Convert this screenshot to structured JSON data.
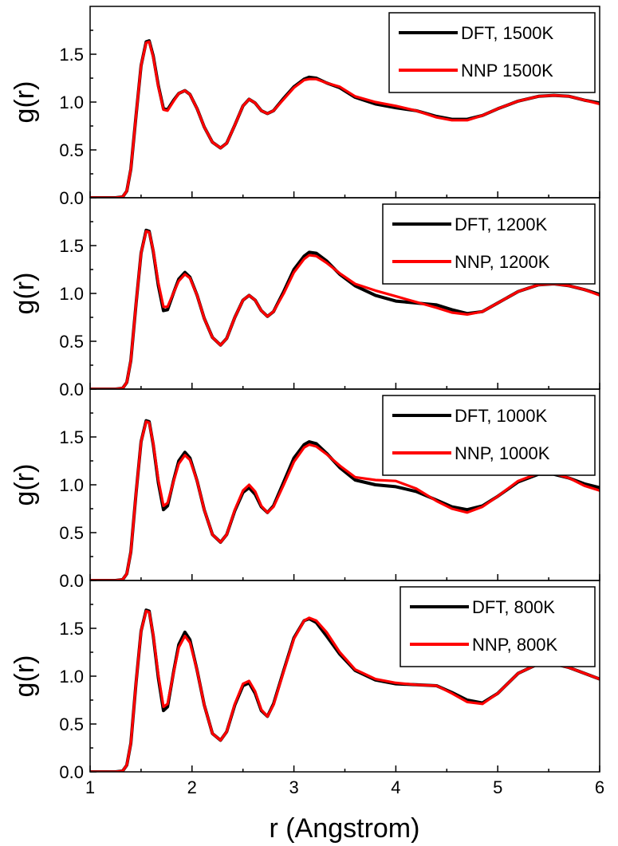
{
  "colors": {
    "dft": "#000000",
    "nnp": "#ff0000"
  },
  "chart_data": [
    {
      "type": "line",
      "panel": "top",
      "xlim": [
        1,
        6
      ],
      "ylim": [
        0,
        2.0
      ],
      "xlabel": "",
      "ylabel": "g(r)",
      "yticks": [
        "0.0",
        "0.5",
        "1.0",
        "1.5"
      ],
      "legend_position": "top-right",
      "series": [
        {
          "name": "DFT, 1500K",
          "color": "#000000",
          "x": [
            1.0,
            1.25,
            1.32,
            1.36,
            1.4,
            1.45,
            1.5,
            1.55,
            1.58,
            1.62,
            1.67,
            1.72,
            1.76,
            1.82,
            1.87,
            1.93,
            1.98,
            2.05,
            2.12,
            2.2,
            2.28,
            2.34,
            2.42,
            2.5,
            2.56,
            2.62,
            2.68,
            2.74,
            2.8,
            2.9,
            3.0,
            3.1,
            3.15,
            3.22,
            3.32,
            3.45,
            3.6,
            3.8,
            4.0,
            4.2,
            4.4,
            4.55,
            4.7,
            4.85,
            5.0,
            5.2,
            5.4,
            5.55,
            5.7,
            5.85,
            6.0
          ],
          "y": [
            0,
            0,
            0.01,
            0.07,
            0.3,
            0.85,
            1.38,
            1.63,
            1.64,
            1.48,
            1.17,
            0.93,
            0.92,
            1.02,
            1.09,
            1.12,
            1.08,
            0.93,
            0.74,
            0.58,
            0.52,
            0.57,
            0.76,
            0.96,
            1.03,
            0.99,
            0.91,
            0.88,
            0.91,
            1.04,
            1.16,
            1.24,
            1.26,
            1.25,
            1.2,
            1.15,
            1.05,
            0.98,
            0.94,
            0.91,
            0.85,
            0.82,
            0.82,
            0.86,
            0.93,
            1.01,
            1.06,
            1.07,
            1.06,
            1.02,
            0.99
          ]
        },
        {
          "name": "NNP 1500K",
          "color": "#ff0000",
          "x": [
            1.0,
            1.25,
            1.32,
            1.36,
            1.4,
            1.45,
            1.5,
            1.55,
            1.58,
            1.62,
            1.67,
            1.72,
            1.76,
            1.82,
            1.87,
            1.93,
            1.98,
            2.05,
            2.12,
            2.2,
            2.28,
            2.34,
            2.42,
            2.5,
            2.56,
            2.62,
            2.68,
            2.74,
            2.8,
            2.9,
            3.0,
            3.1,
            3.15,
            3.22,
            3.32,
            3.45,
            3.6,
            3.8,
            4.0,
            4.2,
            4.4,
            4.55,
            4.7,
            4.85,
            5.0,
            5.2,
            5.4,
            5.55,
            5.7,
            5.85,
            6.0
          ],
          "y": [
            0,
            0,
            0.01,
            0.07,
            0.3,
            0.85,
            1.38,
            1.62,
            1.63,
            1.47,
            1.16,
            0.92,
            0.91,
            1.01,
            1.09,
            1.12,
            1.08,
            0.93,
            0.74,
            0.58,
            0.52,
            0.57,
            0.76,
            0.96,
            1.03,
            0.99,
            0.91,
            0.88,
            0.91,
            1.03,
            1.15,
            1.23,
            1.24,
            1.24,
            1.2,
            1.16,
            1.06,
            1.0,
            0.96,
            0.91,
            0.84,
            0.81,
            0.81,
            0.86,
            0.93,
            1.01,
            1.06,
            1.07,
            1.06,
            1.02,
            0.98
          ]
        }
      ]
    },
    {
      "type": "line",
      "panel": "second",
      "xlim": [
        1,
        6
      ],
      "ylim": [
        0,
        2.0
      ],
      "xlabel": "",
      "ylabel": "g(r)",
      "yticks": [
        "0.0",
        "0.5",
        "1.0",
        "1.5"
      ],
      "legend_position": "top-right",
      "series": [
        {
          "name": "DFT, 1200K",
          "color": "#000000",
          "x": [
            1.0,
            1.25,
            1.32,
            1.36,
            1.4,
            1.45,
            1.5,
            1.55,
            1.58,
            1.62,
            1.67,
            1.72,
            1.76,
            1.82,
            1.87,
            1.93,
            1.98,
            2.05,
            2.12,
            2.2,
            2.28,
            2.34,
            2.42,
            2.5,
            2.56,
            2.62,
            2.68,
            2.74,
            2.8,
            2.9,
            3.0,
            3.1,
            3.15,
            3.22,
            3.32,
            3.45,
            3.6,
            3.8,
            4.0,
            4.2,
            4.4,
            4.55,
            4.7,
            4.85,
            5.0,
            5.2,
            5.4,
            5.55,
            5.7,
            5.85,
            6.0
          ],
          "y": [
            0,
            0,
            0.01,
            0.07,
            0.3,
            0.88,
            1.42,
            1.66,
            1.65,
            1.44,
            1.08,
            0.82,
            0.83,
            1.01,
            1.15,
            1.22,
            1.17,
            0.98,
            0.74,
            0.54,
            0.46,
            0.53,
            0.75,
            0.93,
            0.98,
            0.93,
            0.82,
            0.76,
            0.81,
            1.02,
            1.25,
            1.39,
            1.43,
            1.42,
            1.34,
            1.2,
            1.08,
            0.98,
            0.92,
            0.9,
            0.88,
            0.83,
            0.79,
            0.81,
            0.9,
            1.02,
            1.09,
            1.1,
            1.08,
            1.04,
            0.99
          ]
        },
        {
          "name": "NNP, 1200K",
          "color": "#ff0000",
          "x": [
            1.0,
            1.25,
            1.32,
            1.36,
            1.4,
            1.45,
            1.5,
            1.55,
            1.58,
            1.62,
            1.67,
            1.72,
            1.76,
            1.82,
            1.87,
            1.93,
            1.98,
            2.05,
            2.12,
            2.2,
            2.28,
            2.34,
            2.42,
            2.5,
            2.56,
            2.62,
            2.68,
            2.74,
            2.8,
            2.9,
            3.0,
            3.1,
            3.15,
            3.22,
            3.32,
            3.45,
            3.6,
            3.8,
            4.0,
            4.2,
            4.4,
            4.55,
            4.7,
            4.85,
            5.0,
            5.2,
            5.4,
            5.55,
            5.7,
            5.85,
            6.0
          ],
          "y": [
            0,
            0,
            0.01,
            0.07,
            0.3,
            0.88,
            1.42,
            1.65,
            1.64,
            1.45,
            1.11,
            0.86,
            0.86,
            1.01,
            1.13,
            1.2,
            1.16,
            0.98,
            0.74,
            0.54,
            0.46,
            0.53,
            0.75,
            0.93,
            0.98,
            0.93,
            0.82,
            0.76,
            0.81,
            1.0,
            1.22,
            1.36,
            1.4,
            1.39,
            1.32,
            1.21,
            1.1,
            1.03,
            0.97,
            0.91,
            0.85,
            0.8,
            0.78,
            0.81,
            0.9,
            1.02,
            1.09,
            1.1,
            1.08,
            1.04,
            0.98
          ]
        }
      ]
    },
    {
      "type": "line",
      "panel": "third",
      "xlim": [
        1,
        6
      ],
      "ylim": [
        0,
        2.0
      ],
      "xlabel": "",
      "ylabel": "g(r)",
      "yticks": [
        "0.0",
        "0.5",
        "1.0",
        "1.5"
      ],
      "legend_position": "top-right",
      "series": [
        {
          "name": "DFT, 1000K",
          "color": "#000000",
          "x": [
            1.0,
            1.25,
            1.32,
            1.36,
            1.4,
            1.45,
            1.5,
            1.55,
            1.58,
            1.62,
            1.67,
            1.72,
            1.76,
            1.82,
            1.87,
            1.93,
            1.98,
            2.05,
            2.12,
            2.2,
            2.28,
            2.34,
            2.42,
            2.5,
            2.56,
            2.62,
            2.68,
            2.74,
            2.8,
            2.9,
            3.0,
            3.1,
            3.15,
            3.22,
            3.32,
            3.45,
            3.6,
            3.8,
            4.0,
            4.2,
            4.4,
            4.55,
            4.7,
            4.85,
            5.0,
            5.2,
            5.4,
            5.55,
            5.7,
            5.85,
            6.0
          ],
          "y": [
            0,
            0,
            0.01,
            0.07,
            0.3,
            0.9,
            1.45,
            1.67,
            1.66,
            1.42,
            1.02,
            0.74,
            0.78,
            1.05,
            1.25,
            1.34,
            1.28,
            1.04,
            0.74,
            0.48,
            0.4,
            0.48,
            0.73,
            0.92,
            0.97,
            0.9,
            0.77,
            0.71,
            0.78,
            1.03,
            1.28,
            1.42,
            1.45,
            1.43,
            1.33,
            1.18,
            1.05,
            1.0,
            0.98,
            0.93,
            0.84,
            0.77,
            0.74,
            0.78,
            0.88,
            1.03,
            1.11,
            1.11,
            1.07,
            1.01,
            0.97
          ]
        },
        {
          "name": "NNP, 1000K",
          "color": "#ff0000",
          "x": [
            1.0,
            1.25,
            1.32,
            1.36,
            1.4,
            1.45,
            1.5,
            1.55,
            1.58,
            1.62,
            1.67,
            1.72,
            1.76,
            1.82,
            1.87,
            1.93,
            1.98,
            2.05,
            2.12,
            2.2,
            2.28,
            2.34,
            2.42,
            2.5,
            2.56,
            2.62,
            2.68,
            2.74,
            2.8,
            2.9,
            3.0,
            3.1,
            3.15,
            3.22,
            3.32,
            3.45,
            3.6,
            3.8,
            4.0,
            4.2,
            4.4,
            4.55,
            4.7,
            4.85,
            5.0,
            5.2,
            5.4,
            5.55,
            5.7,
            5.85,
            6.0
          ],
          "y": [
            0,
            0,
            0.01,
            0.07,
            0.3,
            0.9,
            1.45,
            1.66,
            1.65,
            1.43,
            1.05,
            0.78,
            0.81,
            1.04,
            1.22,
            1.31,
            1.26,
            1.04,
            0.74,
            0.48,
            0.4,
            0.48,
            0.74,
            0.94,
            1.0,
            0.93,
            0.78,
            0.71,
            0.77,
            1.0,
            1.24,
            1.39,
            1.42,
            1.4,
            1.32,
            1.2,
            1.08,
            1.05,
            1.04,
            0.96,
            0.83,
            0.75,
            0.71,
            0.77,
            0.88,
            1.04,
            1.12,
            1.12,
            1.07,
            0.99,
            0.94
          ]
        }
      ]
    },
    {
      "type": "line",
      "panel": "bottom",
      "xlim": [
        1,
        6
      ],
      "ylim": [
        0,
        2.0
      ],
      "xlabel": "r (Angstrom)",
      "ylabel": "g(r)",
      "xticks": [
        "1",
        "2",
        "3",
        "4",
        "5",
        "6"
      ],
      "yticks": [
        "0.0",
        "0.5",
        "1.0",
        "1.5"
      ],
      "legend_position": "top-right",
      "series": [
        {
          "name": "DFT, 800K",
          "color": "#000000",
          "x": [
            1.0,
            1.25,
            1.32,
            1.36,
            1.4,
            1.45,
            1.5,
            1.55,
            1.58,
            1.62,
            1.67,
            1.72,
            1.76,
            1.82,
            1.87,
            1.93,
            1.98,
            2.05,
            2.12,
            2.2,
            2.28,
            2.34,
            2.42,
            2.5,
            2.56,
            2.62,
            2.68,
            2.74,
            2.8,
            2.9,
            3.0,
            3.1,
            3.15,
            3.22,
            3.32,
            3.45,
            3.6,
            3.8,
            4.0,
            4.2,
            4.4,
            4.55,
            4.7,
            4.85,
            5.0,
            5.2,
            5.4,
            5.55,
            5.7,
            5.85,
            6.0
          ],
          "y": [
            0,
            0,
            0.01,
            0.07,
            0.3,
            0.92,
            1.47,
            1.69,
            1.68,
            1.42,
            0.98,
            0.64,
            0.68,
            1.05,
            1.33,
            1.46,
            1.38,
            1.06,
            0.7,
            0.4,
            0.33,
            0.42,
            0.7,
            0.9,
            0.93,
            0.82,
            0.64,
            0.58,
            0.71,
            1.06,
            1.4,
            1.58,
            1.6,
            1.56,
            1.42,
            1.23,
            1.06,
            0.96,
            0.92,
            0.91,
            0.9,
            0.83,
            0.75,
            0.72,
            0.82,
            1.03,
            1.13,
            1.13,
            1.09,
            1.03,
            0.97
          ]
        },
        {
          "name": "NNP, 800K",
          "color": "#ff0000",
          "x": [
            1.0,
            1.25,
            1.32,
            1.36,
            1.4,
            1.45,
            1.5,
            1.55,
            1.58,
            1.62,
            1.67,
            1.72,
            1.76,
            1.82,
            1.87,
            1.93,
            1.98,
            2.05,
            2.12,
            2.2,
            2.28,
            2.34,
            2.42,
            2.5,
            2.56,
            2.62,
            2.68,
            2.74,
            2.8,
            2.9,
            3.0,
            3.1,
            3.15,
            3.22,
            3.32,
            3.45,
            3.6,
            3.8,
            4.0,
            4.2,
            4.4,
            4.55,
            4.7,
            4.85,
            5.0,
            5.2,
            5.4,
            5.55,
            5.7,
            5.85,
            6.0
          ],
          "y": [
            0,
            0,
            0.01,
            0.07,
            0.3,
            0.92,
            1.47,
            1.68,
            1.67,
            1.43,
            1.01,
            0.68,
            0.71,
            1.04,
            1.3,
            1.42,
            1.35,
            1.06,
            0.7,
            0.4,
            0.33,
            0.42,
            0.71,
            0.92,
            0.95,
            0.84,
            0.65,
            0.58,
            0.7,
            1.05,
            1.39,
            1.58,
            1.61,
            1.58,
            1.46,
            1.25,
            1.07,
            0.97,
            0.93,
            0.91,
            0.9,
            0.82,
            0.73,
            0.71,
            0.82,
            1.03,
            1.13,
            1.13,
            1.09,
            1.03,
            0.97
          ]
        }
      ]
    }
  ]
}
